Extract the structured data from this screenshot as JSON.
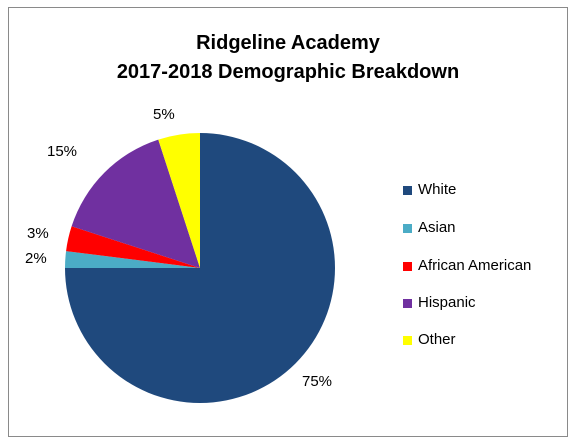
{
  "chart_data": {
    "type": "pie",
    "title": "Ridgeline Academy",
    "subtitle": "2017-2018 Demographic Breakdown",
    "categories": [
      "White",
      "Asian",
      "African American",
      "Hispanic",
      "Other"
    ],
    "values": [
      75,
      2,
      3,
      15,
      5
    ],
    "value_labels": [
      "75%",
      "2%",
      "3%",
      "15%",
      "5%"
    ],
    "colors": [
      "#1F497D",
      "#4BACC6",
      "#FF0000",
      "#7030A0",
      "#FFFF00"
    ],
    "legend_position": "right"
  }
}
